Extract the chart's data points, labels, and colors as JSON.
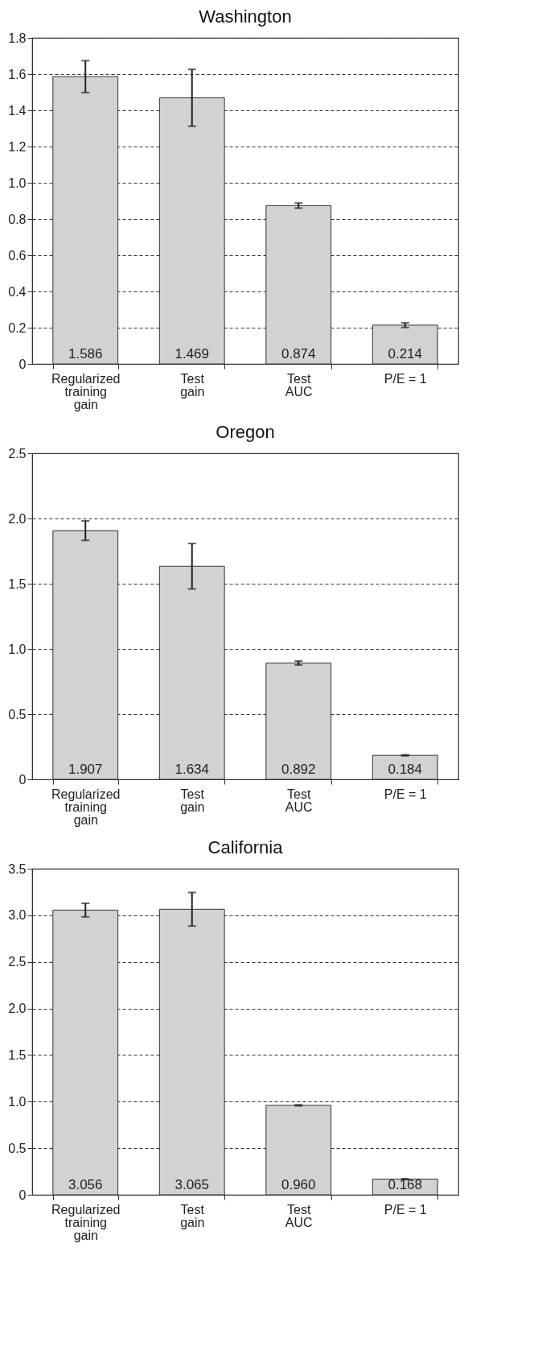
{
  "chart_data": [
    {
      "type": "bar",
      "title": "Washington",
      "categories": [
        "Regularized\ntraining\ngain",
        "Test\ngain",
        "Test\nAUC",
        "P/E = 1"
      ],
      "values": [
        1.586,
        1.469,
        0.874,
        0.214
      ],
      "errors": [
        0.088,
        0.157,
        0.014,
        0.013
      ],
      "value_labels": [
        "1.586",
        "1.469",
        "0.874",
        "0.214"
      ],
      "color": "#d1d2d4",
      "ylim": [
        0,
        1.8
      ],
      "yticks": [
        0,
        0.2,
        0.4,
        0.6,
        0.8,
        {
          "value": 1,
          "label": "1.0"
        },
        1.2,
        1.4,
        1.6,
        1.8
      ],
      "grid": "y"
    },
    {
      "type": "bar",
      "title": "Oregon",
      "categories": [
        "Regularized\ntraining\ngain",
        "Test\ngain",
        "Test\nAUC",
        "P/E = 1"
      ],
      "values": [
        1.907,
        1.634,
        0.892,
        0.184
      ],
      "errors": [
        0.075,
        0.174,
        0.015,
        0.004
      ],
      "value_labels": [
        "1.907",
        "1.634",
        "0.892",
        "0.184"
      ],
      "color": "#d1d2d4",
      "ylim": [
        0,
        2.5
      ],
      "yticks": [
        0,
        0.5,
        {
          "value": 1,
          "label": "1.0"
        },
        1.5,
        {
          "value": 2,
          "label": "2.0"
        },
        2.5
      ],
      "grid": "y"
    },
    {
      "type": "bar",
      "title": "California",
      "categories": [
        "Regularized\ntraining\ngain",
        "Test\ngain",
        "Test\nAUC",
        "P/E = 1"
      ],
      "values": [
        3.056,
        3.065,
        0.96,
        0.168
      ],
      "errors": [
        0.073,
        0.18,
        0.005,
        0.005
      ],
      "value_labels": [
        "3.056",
        "3.065",
        "0.960",
        "0.168"
      ],
      "color": "#d1d2d4",
      "ylim": [
        0,
        3.5
      ],
      "yticks": [
        0,
        0.5,
        {
          "value": 1,
          "label": "1.0"
        },
        1.5,
        {
          "value": 2,
          "label": "2.0"
        },
        2.5,
        {
          "value": 3,
          "label": "3.0"
        },
        3.5
      ],
      "grid": "y"
    }
  ]
}
